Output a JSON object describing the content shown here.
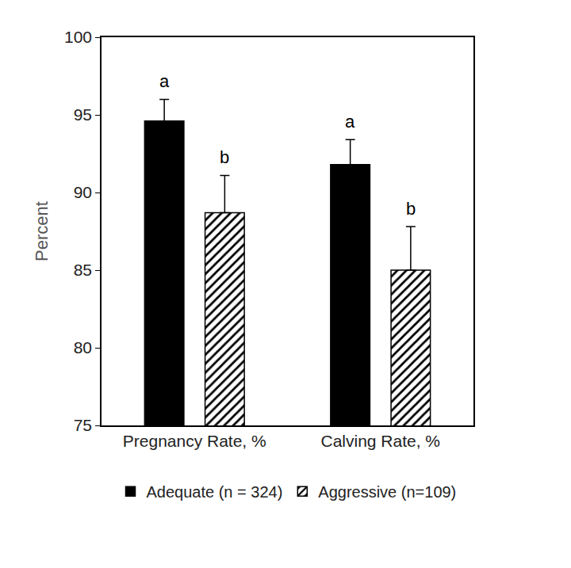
{
  "chart_data": {
    "type": "bar",
    "y_label": "Percent",
    "categories": [
      "Pregnancy Rate, %",
      "Calving Rate, %"
    ],
    "series": [
      {
        "name": "Adequate (n = 324)",
        "color": "#000000",
        "marker": "solid",
        "values": [
          94.6,
          91.8
        ],
        "error_plus": [
          1.4,
          1.6
        ],
        "labels": [
          "a",
          "a"
        ]
      },
      {
        "name": "Aggressive (n=109)",
        "color": "#000000",
        "marker": "hatch",
        "values": [
          88.7,
          85
        ],
        "error_plus": [
          2.4,
          2.8
        ],
        "labels": [
          "b",
          "b"
        ]
      }
    ],
    "ylim": [
      75,
      100
    ],
    "yticks": [
      75,
      80,
      85,
      90,
      95,
      100
    ],
    "grid": false,
    "legend": "bottom"
  }
}
